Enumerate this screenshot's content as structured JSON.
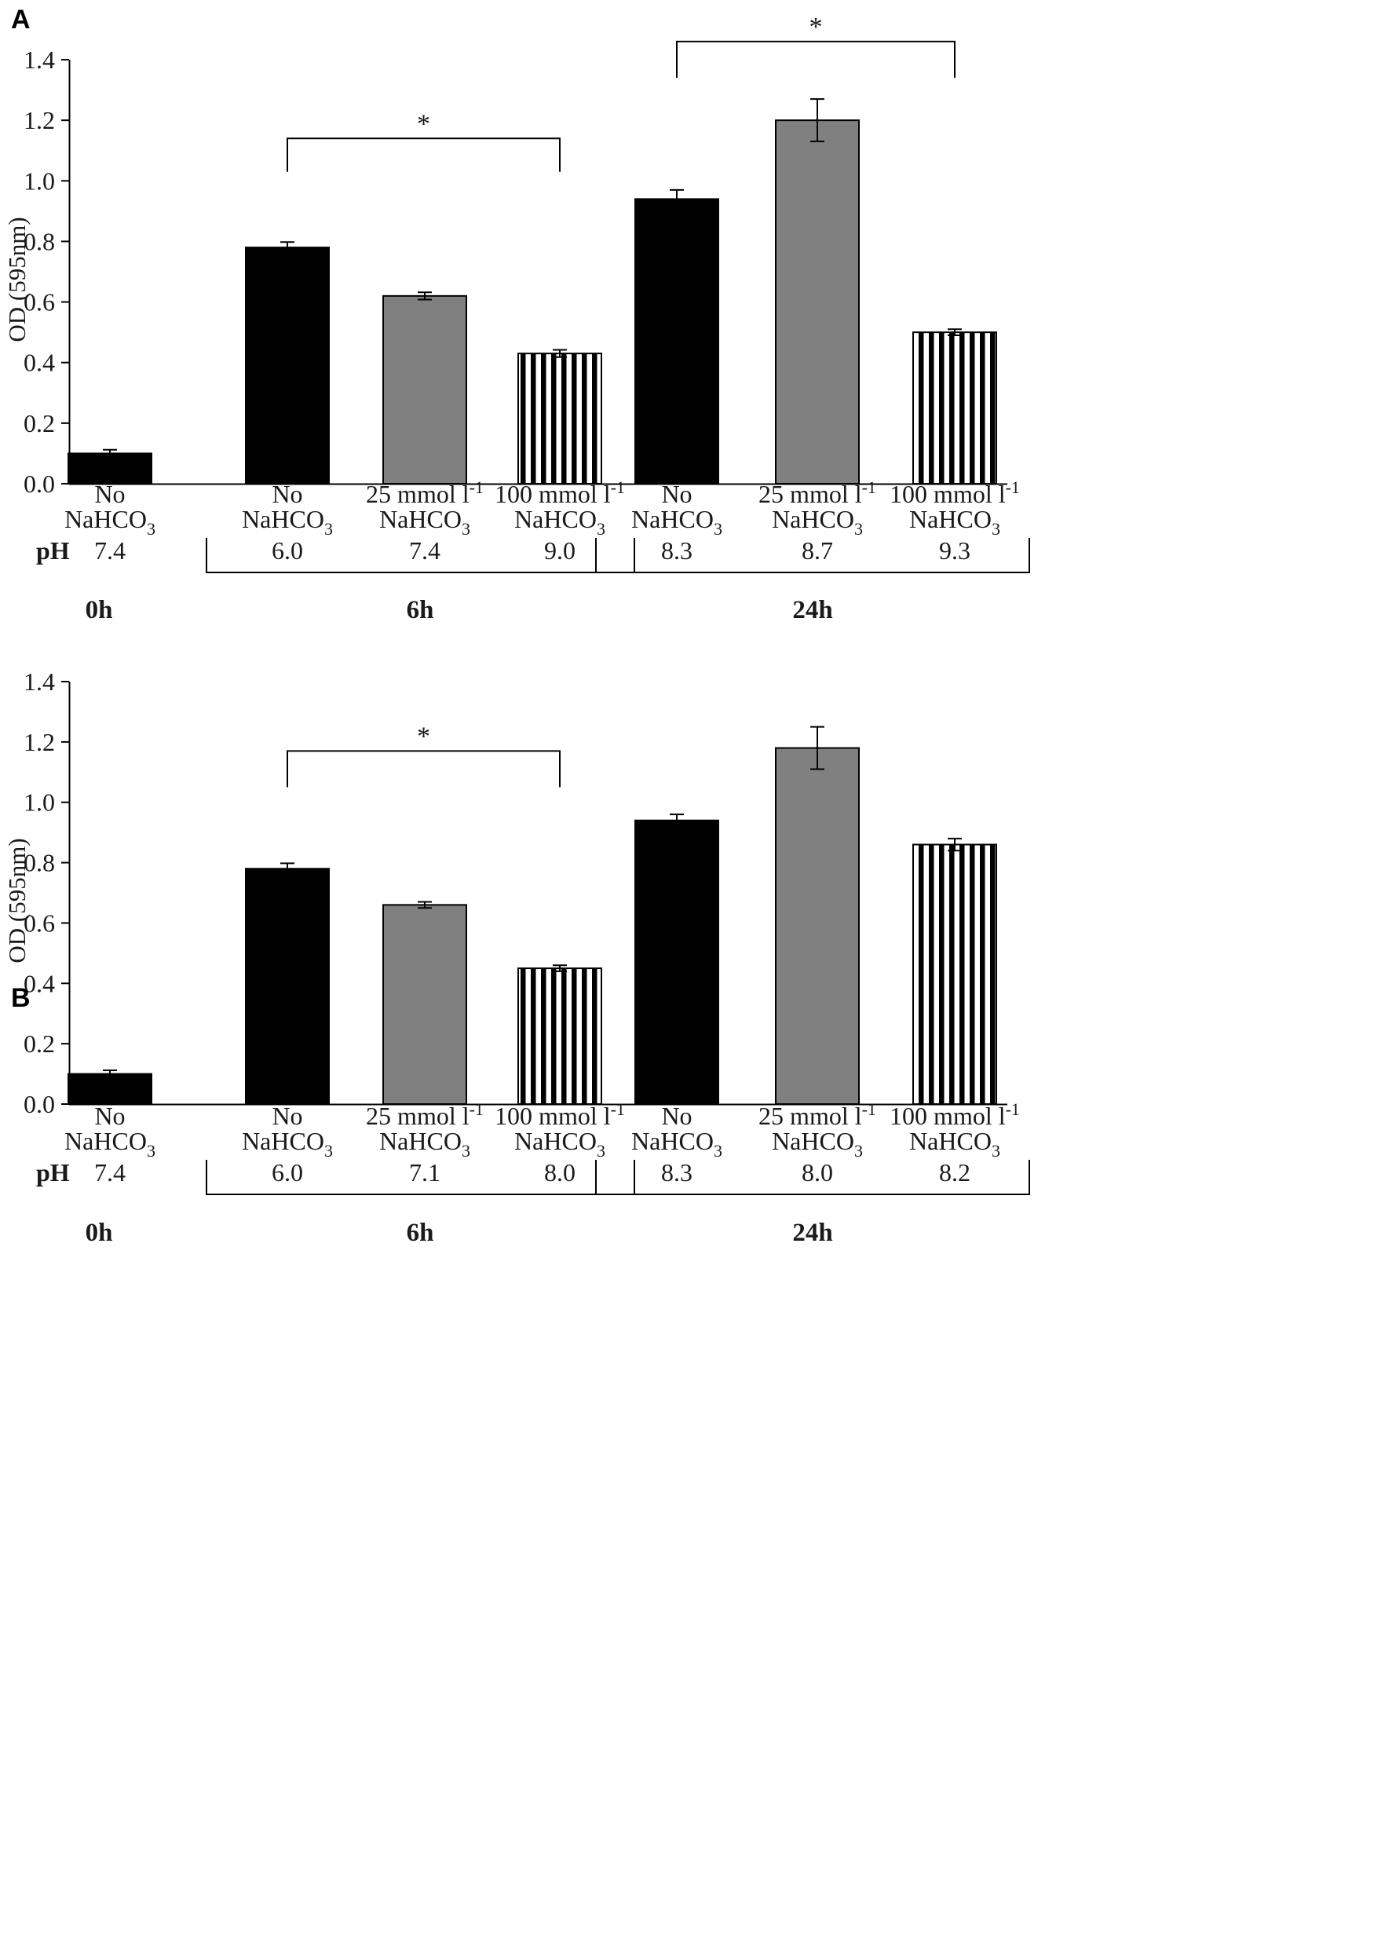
{
  "chart_data": [
    {
      "panel": "A",
      "type": "bar",
      "ylabel": "OD (595nm)",
      "ylim": [
        0,
        1.4
      ],
      "yticks": [
        "0.0",
        "0.2",
        "0.4",
        "0.6",
        "0.8",
        "1.0",
        "1.2",
        "1.4"
      ],
      "ph_label": "pH",
      "series_styles": {
        "none": "#000000",
        "25mM": "#808080",
        "100mM": "#000000"
      },
      "groups": [
        {
          "time": "0h",
          "bars": [
            {
              "series": "none",
              "label": [
                "No",
                "NaHCO",
                "3",
                ""
              ],
              "value": 0.1,
              "err": 0.012,
              "ph": "7.4"
            }
          ]
        },
        {
          "time": "6h",
          "bars": [
            {
              "series": "none",
              "label": [
                "No",
                "NaHCO",
                "3",
                ""
              ],
              "value": 0.78,
              "err": 0.018,
              "ph": "6.0"
            },
            {
              "series": "25mM",
              "label": [
                "25 mmol l",
                "NaHCO",
                "3",
                "-1"
              ],
              "value": 0.62,
              "err": 0.012,
              "ph": "7.4"
            },
            {
              "series": "100mM",
              "label": [
                "100 mmol l",
                "NaHCO",
                "3",
                "-1"
              ],
              "value": 0.43,
              "err": 0.012,
              "ph": "9.0"
            }
          ]
        },
        {
          "time": "24h",
          "bars": [
            {
              "series": "none",
              "label": [
                "No",
                "NaHCO",
                "3",
                ""
              ],
              "value": 0.94,
              "err": 0.03,
              "ph": "8.3"
            },
            {
              "series": "25mM",
              "label": [
                "25 mmol l",
                "NaHCO",
                "3",
                "-1"
              ],
              "value": 1.2,
              "err": 0.07,
              "ph": "8.7"
            },
            {
              "series": "100mM",
              "label": [
                "100 mmol l",
                "NaHCO",
                "3",
                "-1"
              ],
              "value": 0.5,
              "err": 0.01,
              "ph": "9.3"
            }
          ]
        }
      ],
      "significance": [
        {
          "group": 1,
          "from": 0,
          "to": 2,
          "level": 1.14,
          "leftTo": 1.03,
          "rightTo": 1.03,
          "mark": "*"
        },
        {
          "group": 2,
          "from": 0,
          "to": 2,
          "level": 1.46,
          "leftTo": 1.34,
          "rightTo": 1.34,
          "mark": "*"
        }
      ]
    },
    {
      "panel": "B",
      "type": "bar",
      "ylabel": "OD (595nm)",
      "ylim": [
        0,
        1.4
      ],
      "yticks": [
        "0.0",
        "0.2",
        "0.4",
        "0.6",
        "0.8",
        "1.0",
        "1.2",
        "1.4"
      ],
      "ph_label": "pH",
      "series_styles": {
        "none": "#000000",
        "25mM": "#808080",
        "100mM": "#000000"
      },
      "groups": [
        {
          "time": "0h",
          "bars": [
            {
              "series": "none",
              "label": [
                "No",
                "NaHCO",
                "3",
                ""
              ],
              "value": 0.1,
              "err": 0.012,
              "ph": "7.4"
            }
          ]
        },
        {
          "time": "6h",
          "bars": [
            {
              "series": "none",
              "label": [
                "No",
                "NaHCO",
                "3",
                ""
              ],
              "value": 0.78,
              "err": 0.018,
              "ph": "6.0"
            },
            {
              "series": "25mM",
              "label": [
                "25 mmol l",
                "NaHCO",
                "3",
                "-1"
              ],
              "value": 0.66,
              "err": 0.01,
              "ph": "7.1"
            },
            {
              "series": "100mM",
              "label": [
                "100 mmol l",
                "NaHCO",
                "3",
                "-1"
              ],
              "value": 0.45,
              "err": 0.01,
              "ph": "8.0"
            }
          ]
        },
        {
          "time": "24h",
          "bars": [
            {
              "series": "none",
              "label": [
                "No",
                "NaHCO",
                "3",
                ""
              ],
              "value": 0.94,
              "err": 0.02,
              "ph": "8.3"
            },
            {
              "series": "25mM",
              "label": [
                "25 mmol l",
                "NaHCO",
                "3",
                "-1"
              ],
              "value": 1.18,
              "err": 0.07,
              "ph": "8.0"
            },
            {
              "series": "100mM",
              "label": [
                "100 mmol l",
                "NaHCO",
                "3",
                "-1"
              ],
              "value": 0.86,
              "err": 0.02,
              "ph": "8.2"
            }
          ]
        }
      ],
      "significance": [
        {
          "group": 1,
          "from": 0,
          "to": 2,
          "level": 1.17,
          "leftTo": 1.05,
          "rightTo": 1.05,
          "mark": "*"
        }
      ]
    }
  ]
}
